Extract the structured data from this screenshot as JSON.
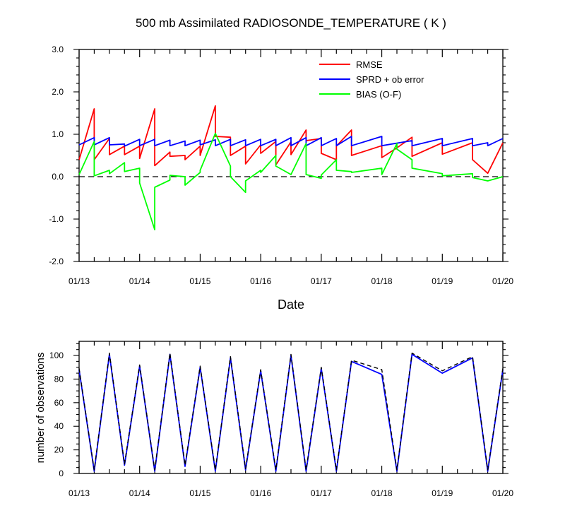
{
  "chart_data": [
    {
      "type": "line",
      "title": "500 mb Assimilated RADIOSONDE_TEMPERATURE ( K )",
      "xlabel": "Date",
      "ylabel": "",
      "x_ticks": [
        "01/13",
        "01/14",
        "01/15",
        "01/16",
        "01/17",
        "01/18",
        "01/19",
        "01/20"
      ],
      "x_unit": "days since 01/13 00Z",
      "xlim": [
        0,
        7
      ],
      "ylim": [
        -2.0,
        3.0
      ],
      "y_ticks": [
        "-2.0",
        "-1.0",
        "0.0",
        "1.0",
        "2.0",
        "3.0"
      ],
      "reference_line": {
        "y": 0.0,
        "style": "dashed"
      },
      "legend": {
        "position": "top-right"
      },
      "series": [
        {
          "name": "RMSE",
          "color": "#ff0000",
          "points": [
            [
              0,
              0.4
            ],
            [
              0.25,
              1.6
            ],
            [
              0.25,
              0.4
            ],
            [
              0.5,
              0.9
            ],
            [
              0.5,
              0.52
            ],
            [
              0.75,
              0.72
            ],
            [
              0.75,
              0.52
            ],
            [
              1,
              0.72
            ],
            [
              1,
              0.43
            ],
            [
              1.25,
              1.6
            ],
            [
              1.25,
              0.26
            ],
            [
              1.5,
              0.58
            ],
            [
              1.5,
              0.48
            ],
            [
              1.75,
              0.5
            ],
            [
              1.75,
              0.4
            ],
            [
              2,
              0.72
            ],
            [
              2,
              0.5
            ],
            [
              2.25,
              1.67
            ],
            [
              2.25,
              0.95
            ],
            [
              2.5,
              0.93
            ],
            [
              2.5,
              0.5
            ],
            [
              2.75,
              0.72
            ],
            [
              2.75,
              0.3
            ],
            [
              3,
              0.75
            ],
            [
              3,
              0.55
            ],
            [
              3.25,
              0.83
            ],
            [
              3.25,
              0.28
            ],
            [
              3.5,
              0.82
            ],
            [
              3.5,
              0.52
            ],
            [
              3.75,
              1.1
            ],
            [
              3.75,
              0.85
            ],
            [
              4,
              0.9
            ],
            [
              4,
              0.55
            ],
            [
              4.25,
              0.4
            ],
            [
              4.25,
              0.72
            ],
            [
              4.5,
              1.1
            ],
            [
              4.5,
              0.5
            ],
            [
              5,
              0.73
            ],
            [
              5,
              0.45
            ],
            [
              5.25,
              0.68
            ],
            [
              5.25,
              0.68
            ],
            [
              5.5,
              0.93
            ],
            [
              5.5,
              0.48
            ],
            [
              6,
              0.8
            ],
            [
              6,
              0.53
            ],
            [
              6.5,
              0.8
            ],
            [
              6.5,
              0.4
            ],
            [
              6.75,
              0.08
            ],
            [
              7,
              0.8
            ]
          ]
        },
        {
          "name": "SPRD + ob error",
          "color": "#0000ff",
          "points": [
            [
              0,
              0.75
            ],
            [
              0.25,
              0.92
            ],
            [
              0.25,
              0.75
            ],
            [
              0.5,
              0.92
            ],
            [
              0.5,
              0.75
            ],
            [
              0.75,
              0.77
            ],
            [
              0.75,
              0.72
            ],
            [
              1,
              0.88
            ],
            [
              1,
              0.73
            ],
            [
              1.25,
              0.88
            ],
            [
              1.25,
              0.73
            ],
            [
              1.5,
              0.86
            ],
            [
              1.5,
              0.73
            ],
            [
              1.75,
              0.84
            ],
            [
              1.75,
              0.73
            ],
            [
              2,
              0.86
            ],
            [
              2,
              0.75
            ],
            [
              2.25,
              0.87
            ],
            [
              2.25,
              0.73
            ],
            [
              2.5,
              0.88
            ],
            [
              2.5,
              0.73
            ],
            [
              2.75,
              0.87
            ],
            [
              2.75,
              0.73
            ],
            [
              3,
              0.88
            ],
            [
              3,
              0.73
            ],
            [
              3.25,
              0.88
            ],
            [
              3.25,
              0.73
            ],
            [
              3.5,
              0.92
            ],
            [
              3.5,
              0.73
            ],
            [
              3.75,
              0.92
            ],
            [
              3.75,
              0.73
            ],
            [
              4,
              0.92
            ],
            [
              4,
              0.73
            ],
            [
              4.25,
              0.9
            ],
            [
              4.25,
              0.73
            ],
            [
              4.5,
              0.95
            ],
            [
              4.5,
              0.73
            ],
            [
              5,
              0.95
            ],
            [
              5,
              0.73
            ],
            [
              5.5,
              0.85
            ],
            [
              5.5,
              0.73
            ],
            [
              6,
              0.9
            ],
            [
              6,
              0.73
            ],
            [
              6.5,
              0.9
            ],
            [
              6.5,
              0.73
            ],
            [
              6.75,
              0.8
            ],
            [
              6.75,
              0.73
            ],
            [
              7,
              0.9
            ]
          ]
        },
        {
          "name": "BIAS (O-F)",
          "color": "#00ff00",
          "points": [
            [
              0,
              0.05
            ],
            [
              0.25,
              0.83
            ],
            [
              0.25,
              0.02
            ],
            [
              0.5,
              0.15
            ],
            [
              0.5,
              0.07
            ],
            [
              0.75,
              0.33
            ],
            [
              0.75,
              0.12
            ],
            [
              1,
              0.2
            ],
            [
              1,
              -0.15
            ],
            [
              1.25,
              -1.25
            ],
            [
              1.25,
              -0.25
            ],
            [
              1.5,
              -0.08
            ],
            [
              1.5,
              0.03
            ],
            [
              1.75,
              0.0
            ],
            [
              1.75,
              -0.2
            ],
            [
              2,
              0.1
            ],
            [
              2,
              0.15
            ],
            [
              2.25,
              1.02
            ],
            [
              2.5,
              0.25
            ],
            [
              2.5,
              0.0
            ],
            [
              2.75,
              -0.37
            ],
            [
              2.75,
              -0.1
            ],
            [
              3,
              0.15
            ],
            [
              3,
              0.1
            ],
            [
              3.25,
              0.5
            ],
            [
              3.25,
              0.25
            ],
            [
              3.5,
              0.05
            ],
            [
              3.75,
              0.78
            ],
            [
              3.75,
              0.05
            ],
            [
              4,
              -0.04
            ],
            [
              4,
              0.04
            ],
            [
              4.25,
              0.4
            ],
            [
              4.25,
              0.15
            ],
            [
              4.5,
              0.12
            ],
            [
              4.5,
              0.1
            ],
            [
              5,
              0.2
            ],
            [
              5,
              0.05
            ],
            [
              5.25,
              0.78
            ],
            [
              5.25,
              0.65
            ],
            [
              5.5,
              0.4
            ],
            [
              5.5,
              0.2
            ],
            [
              6,
              0.07
            ],
            [
              6,
              0.02
            ],
            [
              6.5,
              0.07
            ],
            [
              6.5,
              -0.02
            ],
            [
              6.75,
              -0.1
            ],
            [
              7,
              0.0
            ]
          ]
        }
      ]
    },
    {
      "type": "line",
      "title": "",
      "xlabel": "",
      "ylabel": "number of observations",
      "x_ticks": [
        "01/13",
        "01/14",
        "01/15",
        "01/16",
        "01/17",
        "01/18",
        "01/19",
        "01/20"
      ],
      "x_unit": "days since 01/13 00Z",
      "xlim": [
        0,
        7
      ],
      "ylim": [
        0,
        112
      ],
      "y_ticks": [
        "0",
        "20",
        "40",
        "60",
        "80",
        "100"
      ],
      "series": [
        {
          "name": "",
          "color": "#0000ff",
          "points": [
            [
              0,
              88
            ],
            [
              0.25,
              2
            ],
            [
              0.5,
              101
            ],
            [
              0.75,
              7
            ],
            [
              1,
              91
            ],
            [
              1.25,
              2
            ],
            [
              1.5,
              101
            ],
            [
              1.75,
              6
            ],
            [
              2,
              90
            ],
            [
              2.25,
              2
            ],
            [
              2.5,
              98
            ],
            [
              2.75,
              3
            ],
            [
              3,
              87
            ],
            [
              3.25,
              2
            ],
            [
              3.5,
              100
            ],
            [
              3.75,
              2
            ],
            [
              4,
              89
            ],
            [
              4.25,
              2
            ],
            [
              4.5,
              95
            ],
            [
              5,
              84
            ],
            [
              5.25,
              2
            ],
            [
              5.5,
              101
            ],
            [
              6,
              85
            ],
            [
              6.5,
              98
            ],
            [
              6.75,
              2
            ],
            [
              7,
              88
            ]
          ]
        },
        {
          "name": "",
          "color": "#000000",
          "dashed": true,
          "points": [
            [
              0,
              89
            ],
            [
              0.25,
              3
            ],
            [
              0.5,
              102
            ],
            [
              0.75,
              8
            ],
            [
              1,
              92
            ],
            [
              1.25,
              3
            ],
            [
              1.5,
              102
            ],
            [
              1.75,
              7
            ],
            [
              2,
              91
            ],
            [
              2.25,
              3
            ],
            [
              2.5,
              99
            ],
            [
              2.75,
              4
            ],
            [
              3,
              88
            ],
            [
              3.25,
              3
            ],
            [
              3.5,
              101
            ],
            [
              3.75,
              3
            ],
            [
              4,
              90
            ],
            [
              4.25,
              3
            ],
            [
              4.5,
              96
            ],
            [
              5,
              88
            ],
            [
              5.25,
              3
            ],
            [
              5.5,
              102
            ],
            [
              6,
              87
            ],
            [
              6.5,
              99
            ],
            [
              6.75,
              3
            ],
            [
              7,
              89
            ]
          ]
        }
      ]
    }
  ]
}
